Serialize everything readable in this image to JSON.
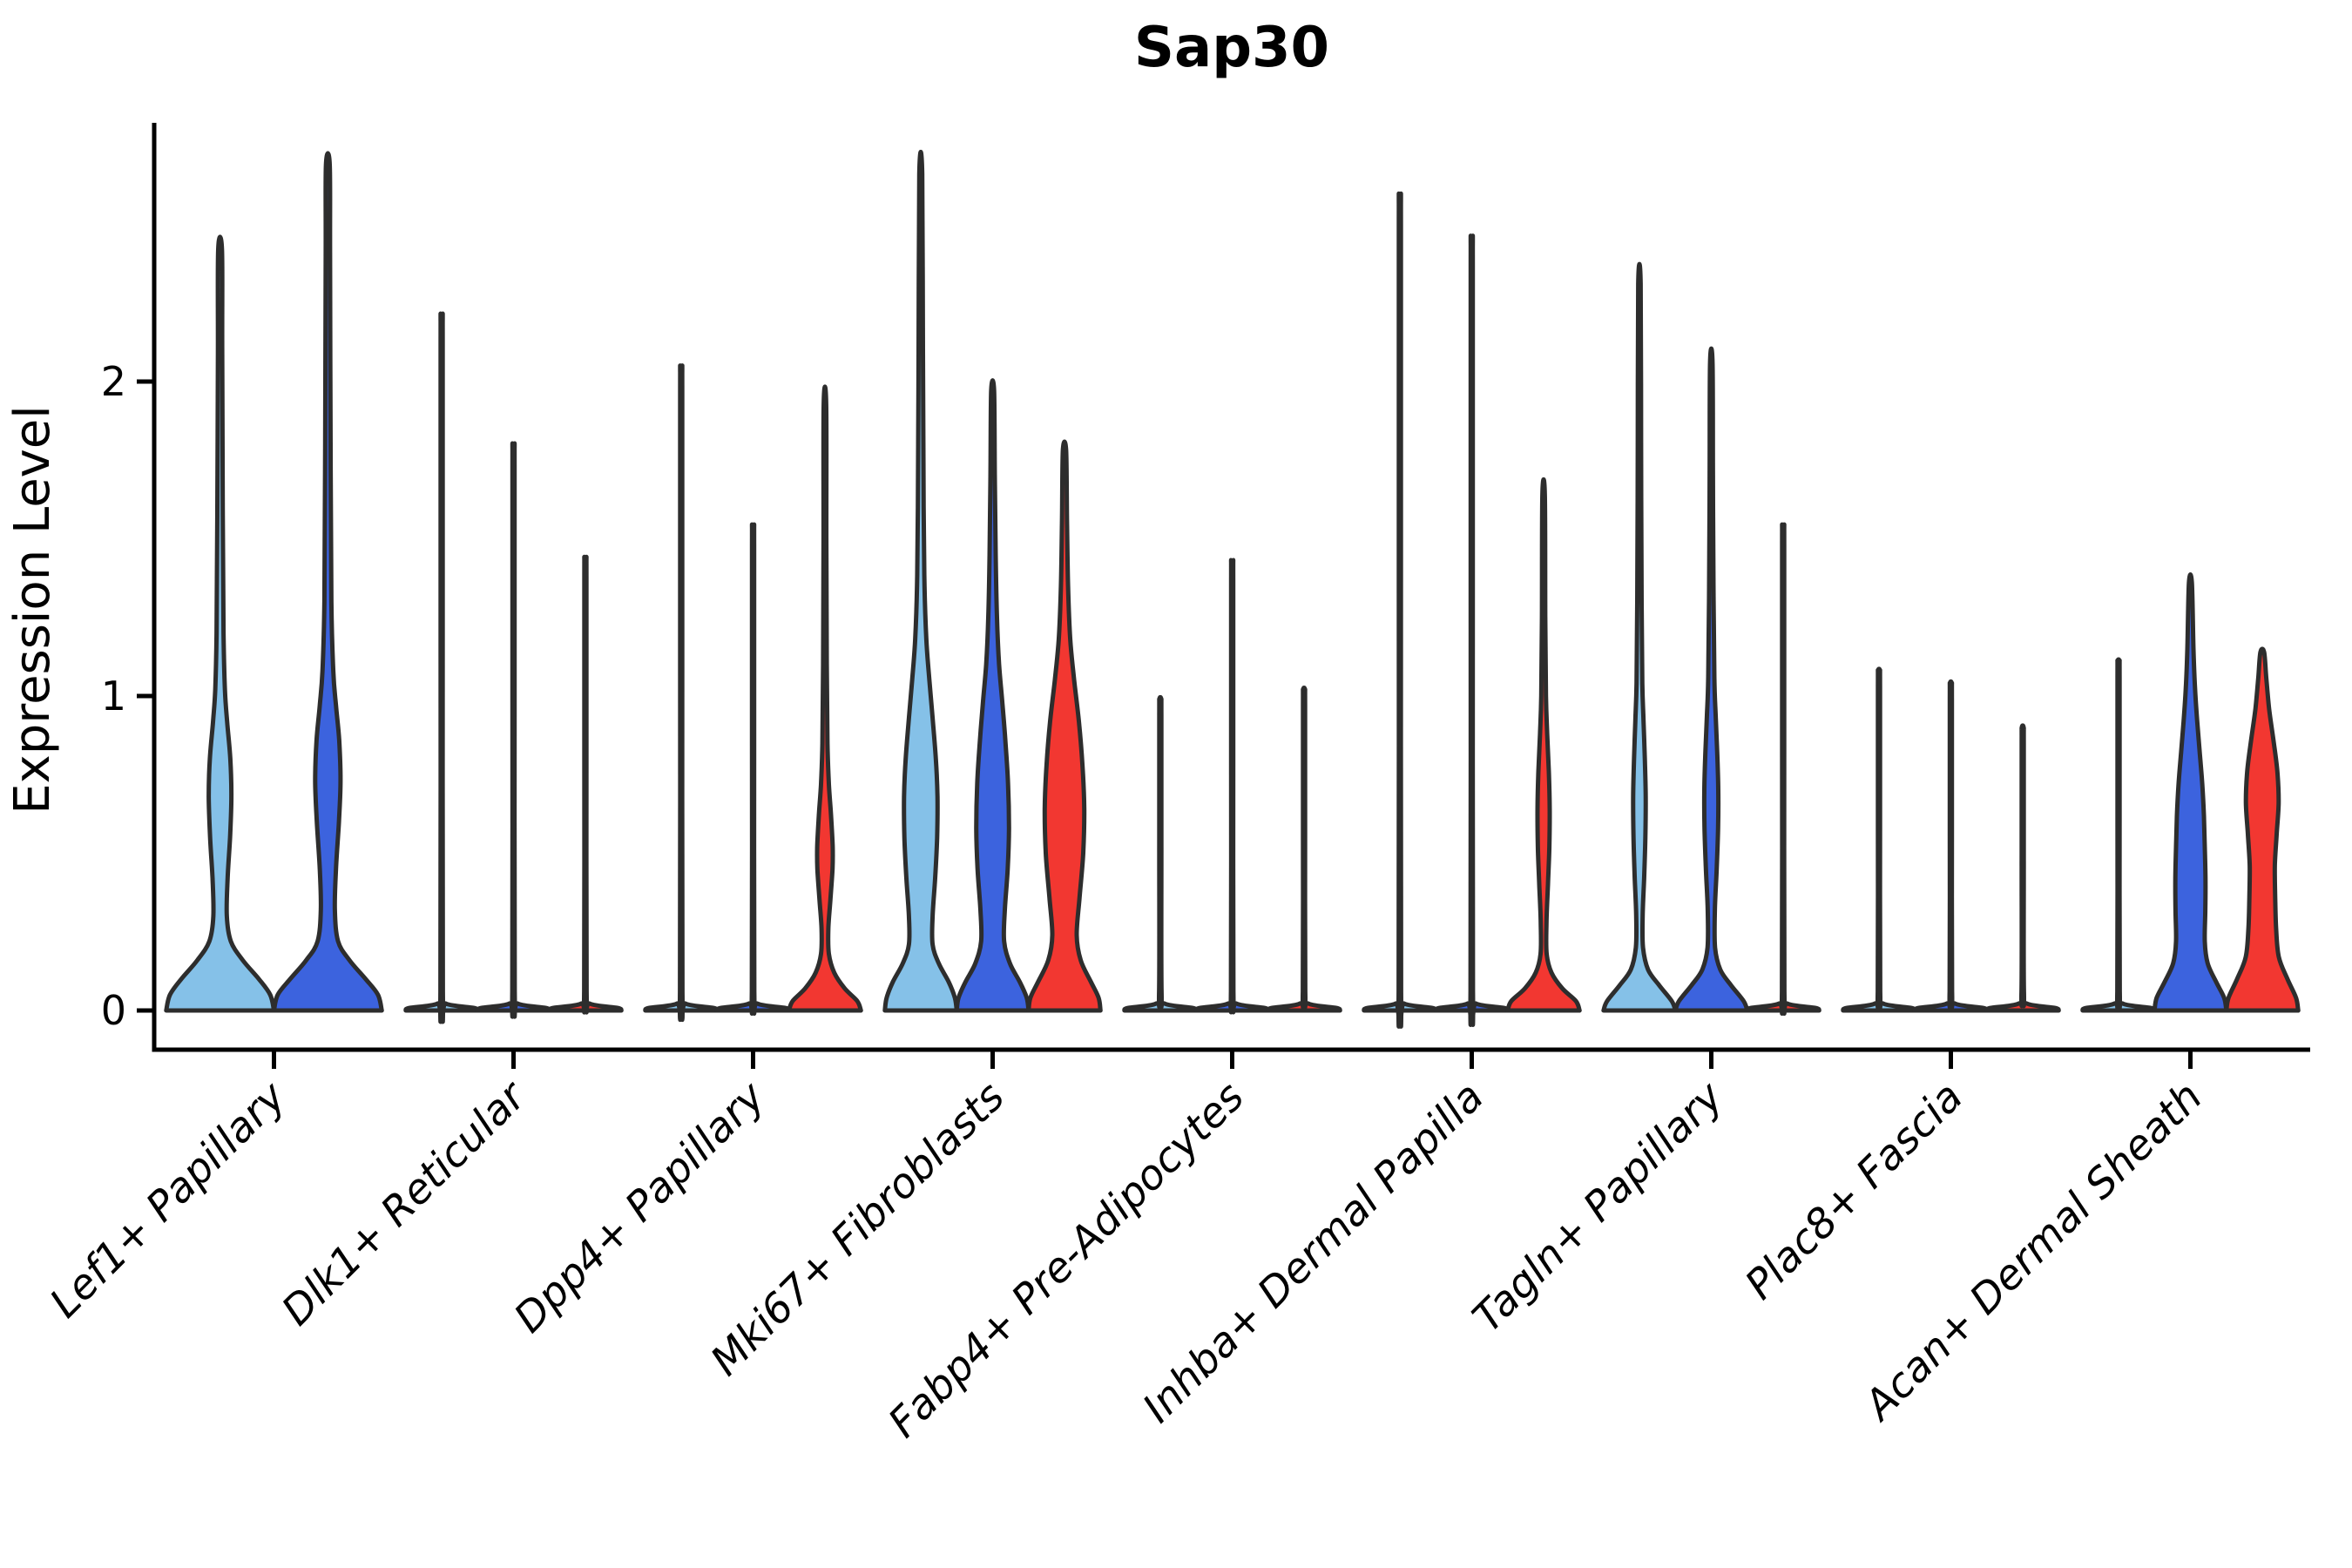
{
  "chart_data": {
    "type": "violin",
    "title": "Sap30",
    "ylabel": "Expression Level",
    "xlabel": "",
    "yticks": [
      0,
      1,
      2
    ],
    "ytick_labels": [
      "0",
      "1",
      "2"
    ],
    "ylim": [
      -0.12,
      2.82
    ],
    "grid": false,
    "legend": "none",
    "categories": [
      "Lef1+ Papillary",
      "Dlk1+ Reticular",
      "Dpp4+ Papillary",
      "Mki67+ Fibroblasts",
      "Fabp4+ Pre-Adipocytes",
      "Inhba+ Dermal Papilla",
      "Tagln+ Papillary",
      "Plac8+ Fascia",
      "Acan+ Dermal Sheath"
    ],
    "colors": {
      "light_blue": "#85C1E8",
      "royal_blue": "#3C63DE",
      "red": "#F23731",
      "outline": "#2D2D2D",
      "axis": "#000000"
    },
    "groups": [
      {
        "category": "Lef1+ Papillary",
        "violins": [
          {
            "color": "light_blue",
            "max": 2.42,
            "profile": [
              [
                0,
                1.0
              ],
              [
                0.05,
                0.93
              ],
              [
                0.1,
                0.72
              ],
              [
                0.16,
                0.42
              ],
              [
                0.22,
                0.2
              ],
              [
                0.3,
                0.125
              ],
              [
                0.42,
                0.14
              ],
              [
                0.55,
                0.185
              ],
              [
                0.68,
                0.21
              ],
              [
                0.8,
                0.19
              ],
              [
                0.92,
                0.13
              ],
              [
                1.02,
                0.09
              ],
              [
                1.2,
                0.065
              ],
              [
                1.6,
                0.05
              ],
              [
                2.1,
                0.04
              ],
              [
                2.42,
                0.035
              ]
            ]
          },
          {
            "color": "royal_blue",
            "max": 2.69,
            "profile": [
              [
                0,
                1.0
              ],
              [
                0.05,
                0.93
              ],
              [
                0.1,
                0.7
              ],
              [
                0.16,
                0.4
              ],
              [
                0.22,
                0.19
              ],
              [
                0.32,
                0.13
              ],
              [
                0.45,
                0.15
              ],
              [
                0.6,
                0.205
              ],
              [
                0.73,
                0.235
              ],
              [
                0.86,
                0.21
              ],
              [
                0.97,
                0.15
              ],
              [
                1.08,
                0.1
              ],
              [
                1.3,
                0.065
              ],
              [
                1.8,
                0.05
              ],
              [
                2.4,
                0.04
              ],
              [
                2.69,
                0.035
              ]
            ]
          }
        ]
      },
      {
        "category": "Dlk1+ Reticular",
        "violins": [
          {
            "color": "light_blue",
            "max": 2.18,
            "shape": "spike"
          },
          {
            "color": "royal_blue",
            "max": 1.78,
            "shape": "spike"
          },
          {
            "color": "red",
            "max": 1.43,
            "shape": "spike"
          }
        ]
      },
      {
        "category": "Dpp4+ Papillary",
        "violins": [
          {
            "color": "light_blue",
            "max": 2.02,
            "shape": "spike"
          },
          {
            "color": "royal_blue",
            "max": 1.53,
            "shape": "spike"
          },
          {
            "color": "red",
            "max": 1.93,
            "profile": [
              [
                0,
                1.0
              ],
              [
                0.03,
                0.9
              ],
              [
                0.07,
                0.55
              ],
              [
                0.12,
                0.26
              ],
              [
                0.18,
                0.11
              ],
              [
                0.26,
                0.095
              ],
              [
                0.35,
                0.15
              ],
              [
                0.45,
                0.21
              ],
              [
                0.52,
                0.215
              ],
              [
                0.62,
                0.17
              ],
              [
                0.72,
                0.11
              ],
              [
                0.85,
                0.07
              ],
              [
                1.1,
                0.05
              ],
              [
                1.5,
                0.04
              ],
              [
                1.93,
                0.035
              ]
            ]
          }
        ]
      },
      {
        "category": "Mki67+ Fibroblasts",
        "violins": [
          {
            "color": "light_blue",
            "max": 2.66,
            "profile": [
              [
                0,
                1.0
              ],
              [
                0.04,
                0.95
              ],
              [
                0.09,
                0.78
              ],
              [
                0.15,
                0.5
              ],
              [
                0.21,
                0.33
              ],
              [
                0.3,
                0.33
              ],
              [
                0.42,
                0.4
              ],
              [
                0.55,
                0.455
              ],
              [
                0.68,
                0.465
              ],
              [
                0.8,
                0.42
              ],
              [
                0.93,
                0.33
              ],
              [
                1.05,
                0.24
              ],
              [
                1.18,
                0.155
              ],
              [
                1.35,
                0.105
              ],
              [
                1.6,
                0.08
              ],
              [
                2.1,
                0.06
              ],
              [
                2.66,
                0.04
              ]
            ]
          },
          {
            "color": "royal_blue",
            "max": 1.97,
            "profile": [
              [
                0,
                1.0
              ],
              [
                0.04,
                0.95
              ],
              [
                0.09,
                0.76
              ],
              [
                0.15,
                0.48
              ],
              [
                0.22,
                0.32
              ],
              [
                0.32,
                0.34
              ],
              [
                0.45,
                0.42
              ],
              [
                0.58,
                0.455
              ],
              [
                0.72,
                0.43
              ],
              [
                0.85,
                0.36
              ],
              [
                0.98,
                0.27
              ],
              [
                1.1,
                0.18
              ],
              [
                1.25,
                0.12
              ],
              [
                1.45,
                0.085
              ],
              [
                1.7,
                0.06
              ],
              [
                1.97,
                0.04
              ]
            ]
          },
          {
            "color": "red",
            "max": 1.78,
            "profile": [
              [
                0,
                1.0
              ],
              [
                0.04,
                0.95
              ],
              [
                0.09,
                0.74
              ],
              [
                0.16,
                0.45
              ],
              [
                0.24,
                0.34
              ],
              [
                0.36,
                0.42
              ],
              [
                0.5,
                0.52
              ],
              [
                0.64,
                0.55
              ],
              [
                0.78,
                0.5
              ],
              [
                0.92,
                0.4
              ],
              [
                1.05,
                0.27
              ],
              [
                1.18,
                0.16
              ],
              [
                1.35,
                0.1
              ],
              [
                1.55,
                0.07
              ],
              [
                1.78,
                0.045
              ]
            ]
          }
        ]
      },
      {
        "category": "Fabp4+ Pre-Adipocytes",
        "violins": [
          {
            "color": "light_blue",
            "max": 0.99,
            "shape": "spike"
          },
          {
            "color": "royal_blue",
            "max": 1.42,
            "shape": "spike"
          },
          {
            "color": "red",
            "max": 1.02,
            "shape": "spike"
          }
        ]
      },
      {
        "category": "Inhba+ Dermal Papilla",
        "violins": [
          {
            "color": "light_blue",
            "max": 2.55,
            "shape": "spike"
          },
          {
            "color": "royal_blue",
            "max": 2.42,
            "shape": "spike"
          },
          {
            "color": "red",
            "max": 1.64,
            "profile": [
              [
                0,
                1.0
              ],
              [
                0.03,
                0.9
              ],
              [
                0.07,
                0.52
              ],
              [
                0.12,
                0.22
              ],
              [
                0.18,
                0.085
              ],
              [
                0.28,
                0.08
              ],
              [
                0.4,
                0.12
              ],
              [
                0.52,
                0.16
              ],
              [
                0.64,
                0.17
              ],
              [
                0.76,
                0.145
              ],
              [
                0.88,
                0.1
              ],
              [
                1.0,
                0.065
              ],
              [
                1.25,
                0.045
              ],
              [
                1.64,
                0.035
              ]
            ]
          }
        ]
      },
      {
        "category": "Tagln+ Papillary",
        "violins": [
          {
            "color": "light_blue",
            "max": 2.31,
            "profile": [
              [
                0,
                1.0
              ],
              [
                0.03,
                0.9
              ],
              [
                0.08,
                0.55
              ],
              [
                0.13,
                0.24
              ],
              [
                0.2,
                0.1
              ],
              [
                0.3,
                0.09
              ],
              [
                0.42,
                0.13
              ],
              [
                0.55,
                0.165
              ],
              [
                0.68,
                0.175
              ],
              [
                0.8,
                0.15
              ],
              [
                0.92,
                0.115
              ],
              [
                1.04,
                0.08
              ],
              [
                1.3,
                0.06
              ],
              [
                1.8,
                0.045
              ],
              [
                2.31,
                0.035
              ]
            ]
          },
          {
            "color": "royal_blue",
            "max": 2.06,
            "profile": [
              [
                0,
                1.0
              ],
              [
                0.03,
                0.9
              ],
              [
                0.08,
                0.55
              ],
              [
                0.13,
                0.25
              ],
              [
                0.2,
                0.105
              ],
              [
                0.32,
                0.1
              ],
              [
                0.45,
                0.15
              ],
              [
                0.58,
                0.19
              ],
              [
                0.7,
                0.195
              ],
              [
                0.82,
                0.165
              ],
              [
                0.94,
                0.12
              ],
              [
                1.06,
                0.085
              ],
              [
                1.35,
                0.06
              ],
              [
                1.7,
                0.045
              ],
              [
                2.06,
                0.035
              ]
            ]
          },
          {
            "color": "red",
            "max": 1.53,
            "shape": "spike"
          }
        ]
      },
      {
        "category": "Plac8+ Fascia",
        "violins": [
          {
            "color": "light_blue",
            "max": 1.08,
            "shape": "spike"
          },
          {
            "color": "royal_blue",
            "max": 1.04,
            "shape": "spike"
          },
          {
            "color": "red",
            "max": 0.9,
            "shape": "spike"
          }
        ]
      },
      {
        "category": "Acan+ Dermal Sheath",
        "violins": [
          {
            "color": "light_blue",
            "max": 1.11,
            "shape": "spike"
          },
          {
            "color": "royal_blue",
            "max": 1.36,
            "profile": [
              [
                0,
                1.0
              ],
              [
                0.04,
                0.94
              ],
              [
                0.09,
                0.72
              ],
              [
                0.15,
                0.48
              ],
              [
                0.22,
                0.4
              ],
              [
                0.32,
                0.415
              ],
              [
                0.42,
                0.42
              ],
              [
                0.52,
                0.4
              ],
              [
                0.62,
                0.375
              ],
              [
                0.72,
                0.33
              ],
              [
                0.82,
                0.26
              ],
              [
                0.92,
                0.19
              ],
              [
                1.02,
                0.13
              ],
              [
                1.15,
                0.085
              ],
              [
                1.36,
                0.04
              ]
            ]
          },
          {
            "color": "red",
            "max": 1.14,
            "profile": [
              [
                0,
                1.0
              ],
              [
                0.04,
                0.94
              ],
              [
                0.1,
                0.7
              ],
              [
                0.17,
                0.46
              ],
              [
                0.26,
                0.385
              ],
              [
                0.36,
                0.36
              ],
              [
                0.46,
                0.35
              ],
              [
                0.56,
                0.4
              ],
              [
                0.66,
                0.455
              ],
              [
                0.76,
                0.42
              ],
              [
                0.86,
                0.31
              ],
              [
                0.96,
                0.19
              ],
              [
                1.06,
                0.11
              ],
              [
                1.14,
                0.05
              ]
            ]
          }
        ]
      }
    ]
  }
}
